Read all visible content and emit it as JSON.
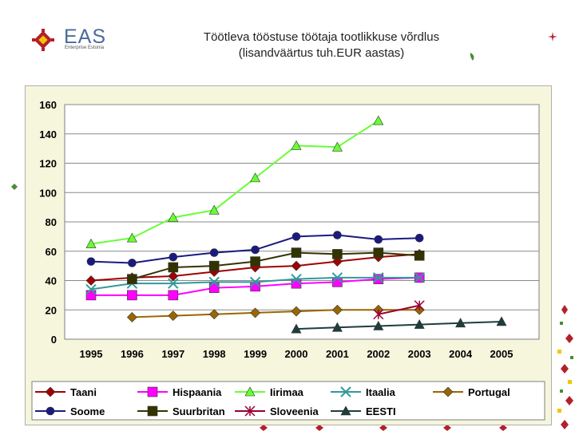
{
  "header": {
    "logo_text": "EAS",
    "logo_subtext": "Enterprise Estonia",
    "title_line1": "Töötleva tööstuse töötaja tootlikkuse võrdlus",
    "title_line2": "(lisandväärtus tuh.EUR aastas)"
  },
  "chart_data": {
    "type": "line",
    "title": "",
    "xlabel": "",
    "ylabel": "",
    "categories": [
      "1995",
      "1996",
      "1997",
      "1998",
      "1999",
      "2000",
      "2001",
      "2002",
      "2003",
      "2004",
      "2005"
    ],
    "ylim": [
      0,
      160
    ],
    "yticks": [
      0,
      20,
      40,
      60,
      80,
      100,
      120,
      140,
      160
    ],
    "grid": true,
    "legend_position": "bottom",
    "series": [
      {
        "name": "Taani",
        "color": "#a00000",
        "marker": "diamond",
        "values": [
          40,
          42,
          43,
          46,
          49,
          50,
          53,
          56,
          58,
          null,
          null
        ]
      },
      {
        "name": "Hispaania",
        "color": "#ff00ff",
        "marker": "square",
        "values": [
          30,
          30,
          30,
          35,
          36,
          38,
          39,
          41,
          42,
          null,
          null
        ]
      },
      {
        "name": "Iirimaa",
        "color": "#66ff33",
        "marker": "triangle",
        "values": [
          65,
          69,
          83,
          88,
          110,
          132,
          131,
          149,
          null,
          null,
          null
        ]
      },
      {
        "name": "Itaalia",
        "color": "#339999",
        "marker": "x",
        "values": [
          34,
          38,
          38,
          39,
          39,
          41,
          42,
          42,
          42,
          null,
          null
        ]
      },
      {
        "name": "Portugal",
        "color": "#996600",
        "marker": "diamond",
        "values": [
          null,
          15,
          16,
          17,
          18,
          19,
          20,
          20,
          20,
          null,
          null
        ]
      },
      {
        "name": "Soome",
        "color": "#1a1a80",
        "marker": "circle",
        "values": [
          53,
          52,
          56,
          59,
          61,
          70,
          71,
          68,
          69,
          null,
          null
        ]
      },
      {
        "name": "Suurbritan",
        "color": "#333300",
        "marker": "square",
        "values": [
          null,
          41,
          49,
          50,
          53,
          59,
          58,
          59,
          57,
          null,
          null
        ]
      },
      {
        "name": "Sloveenia",
        "color": "#990033",
        "marker": "star",
        "values": [
          null,
          null,
          null,
          null,
          null,
          null,
          null,
          17,
          23,
          null,
          null
        ]
      },
      {
        "name": "EESTI",
        "color": "#1f3d3d",
        "marker": "triangle",
        "values": [
          null,
          null,
          null,
          null,
          null,
          7,
          8,
          9,
          10,
          11,
          12
        ]
      }
    ]
  }
}
